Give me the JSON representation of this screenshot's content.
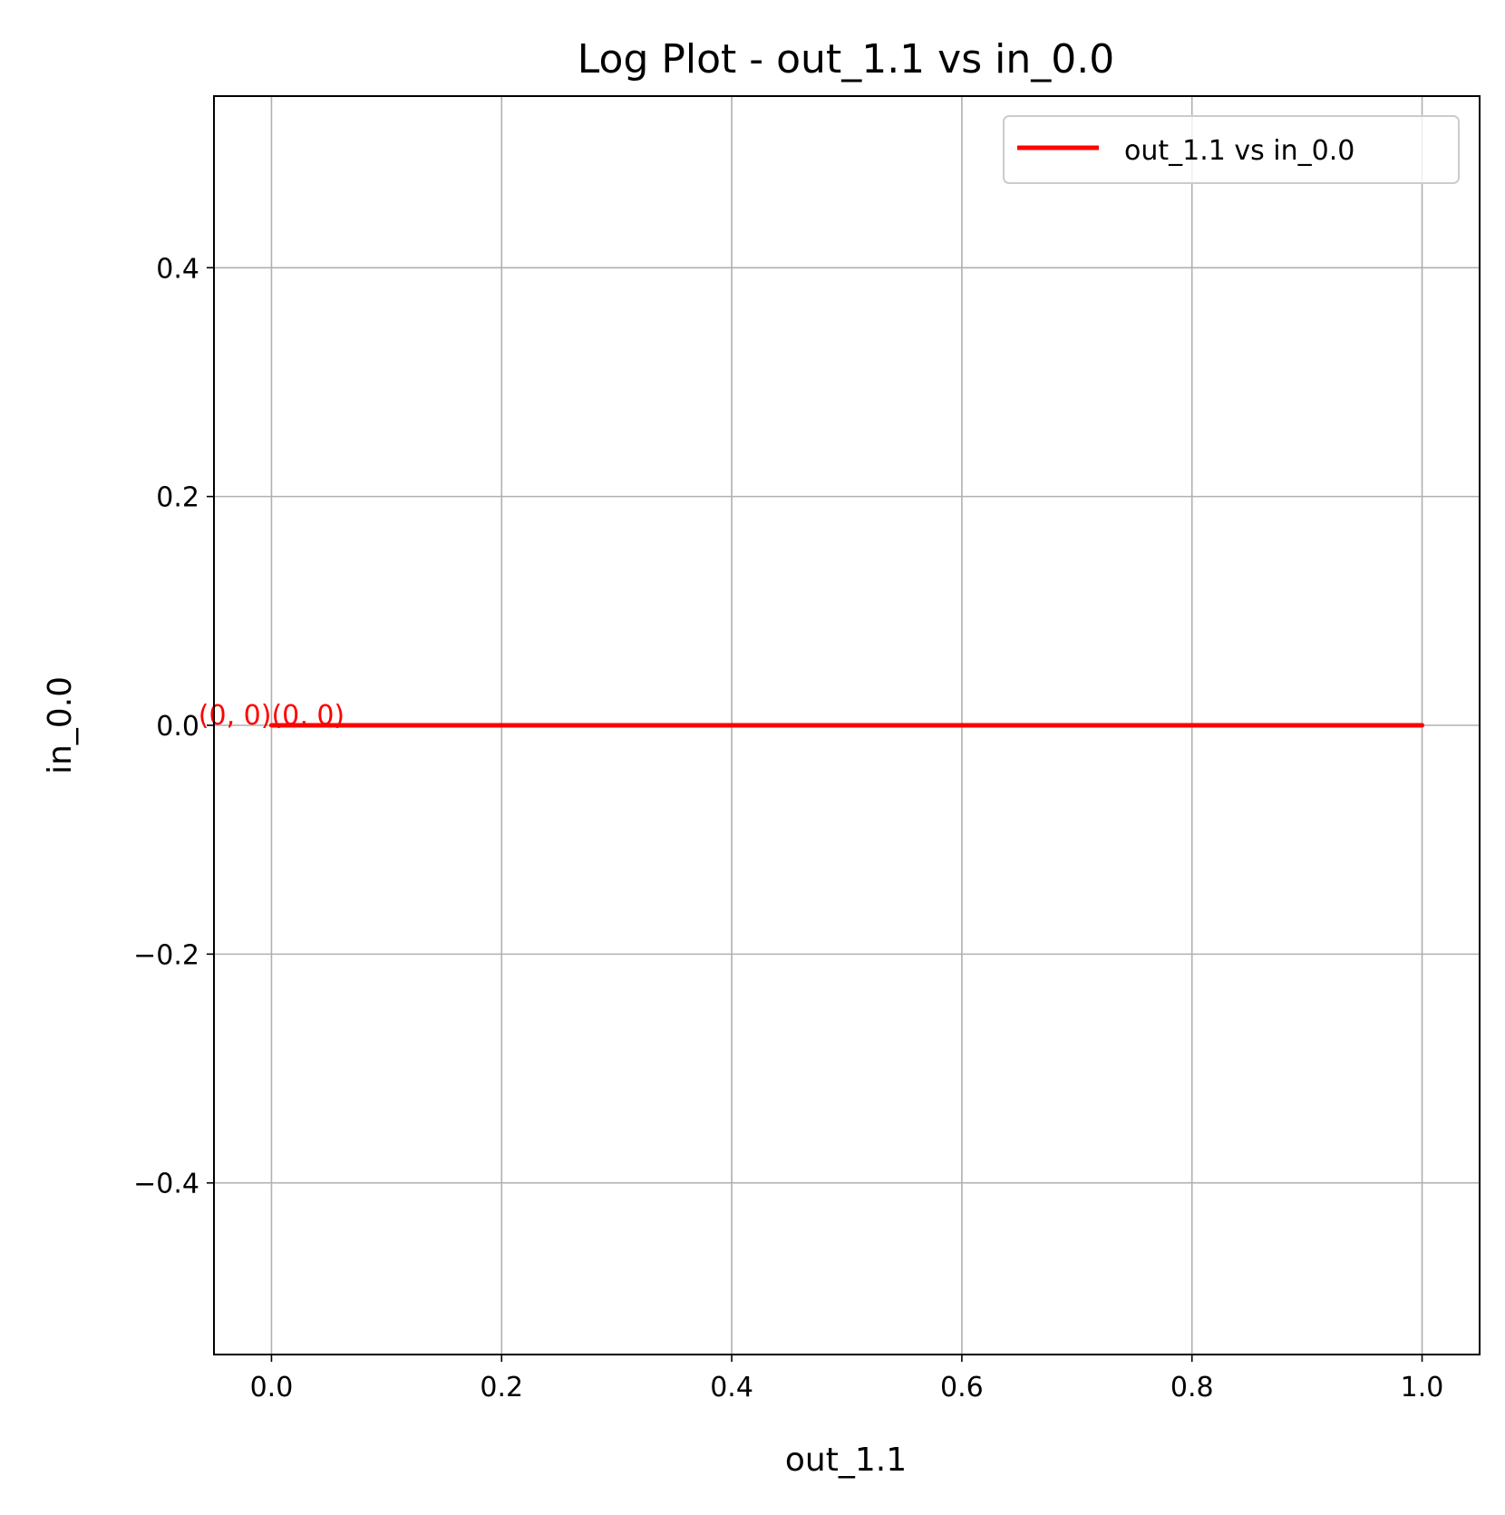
{
  "chart_data": {
    "type": "line",
    "title": "Log Plot - out_1.1 vs in_0.0",
    "xlabel": "out_1.1",
    "ylabel": "in_0.0",
    "xlim": [
      -0.05,
      1.05
    ],
    "ylim": [
      -0.55,
      0.55
    ],
    "x_ticks": [
      0.0,
      0.2,
      0.4,
      0.6,
      0.8,
      1.0
    ],
    "x_tick_labels": [
      "0.0",
      "0.2",
      "0.4",
      "0.6",
      "0.8",
      "1.0"
    ],
    "y_ticks": [
      -0.4,
      -0.2,
      0.0,
      0.2,
      0.4
    ],
    "y_tick_labels": [
      "−0.4",
      "−0.2",
      "0.0",
      "0.2",
      "0.4"
    ],
    "grid": true,
    "legend_position": "top-right",
    "series": [
      {
        "name": "out_1.1 vs in_0.0",
        "color": "#ff0000",
        "x": [
          0.0,
          1.0
        ],
        "y": [
          0.0,
          0.0
        ]
      }
    ],
    "annotations": [
      {
        "text": "(0, 0)",
        "x": 0.0,
        "y": 0.0,
        "color": "#ff0000",
        "anchor": "end"
      },
      {
        "text": "(0, 0)",
        "x": 0.0,
        "y": 0.0,
        "color": "#ff0000",
        "anchor": "start"
      }
    ]
  }
}
